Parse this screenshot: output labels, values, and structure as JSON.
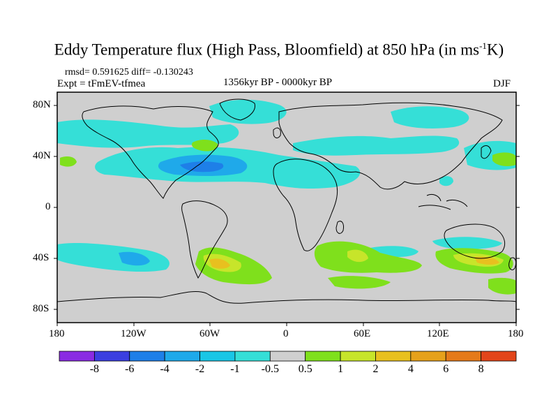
{
  "title": {
    "main": "Eddy Temperature flux (High Pass, Bloomfield) at 850 hPa (in ms",
    "sup": "-1",
    "end": "K)"
  },
  "stats": "rmsd= 0.591625 diff= -0.130243",
  "experiment": "Expt = tFmEV-tfmea",
  "period": "1356kyr BP - 0000kyr BP",
  "season": "DJF",
  "lat_labels": [
    "80N",
    "40N",
    "0",
    "40S",
    "80S"
  ],
  "lon_labels": [
    "180",
    "120W",
    "60W",
    "0",
    "60E",
    "120E",
    "180"
  ],
  "colorbar": {
    "colors": [
      "#8a2be2",
      "#3b3fe0",
      "#1e7fe8",
      "#1fa9ea",
      "#19c6e6",
      "#35dfd7",
      "#cfcfcf",
      "#7fe01c",
      "#c7e52a",
      "#e8c01f",
      "#e6a11b",
      "#e57a1a",
      "#e2451a"
    ],
    "labels": [
      "-8",
      "-6",
      "-4",
      "-2",
      "-1",
      "-0.5",
      "0.5",
      "1",
      "2",
      "4",
      "6",
      "8"
    ]
  },
  "colors": {
    "land_neutral": "#cfcfcf",
    "coast": "#000000",
    "neg_light": "#35dfd7",
    "neg_mid": "#19c6e6",
    "neg_strong": "#1fa9ea",
    "pos_light": "#7fe01c",
    "pos_mid": "#c7e52a",
    "pos_strong": "#e8c01f"
  }
}
